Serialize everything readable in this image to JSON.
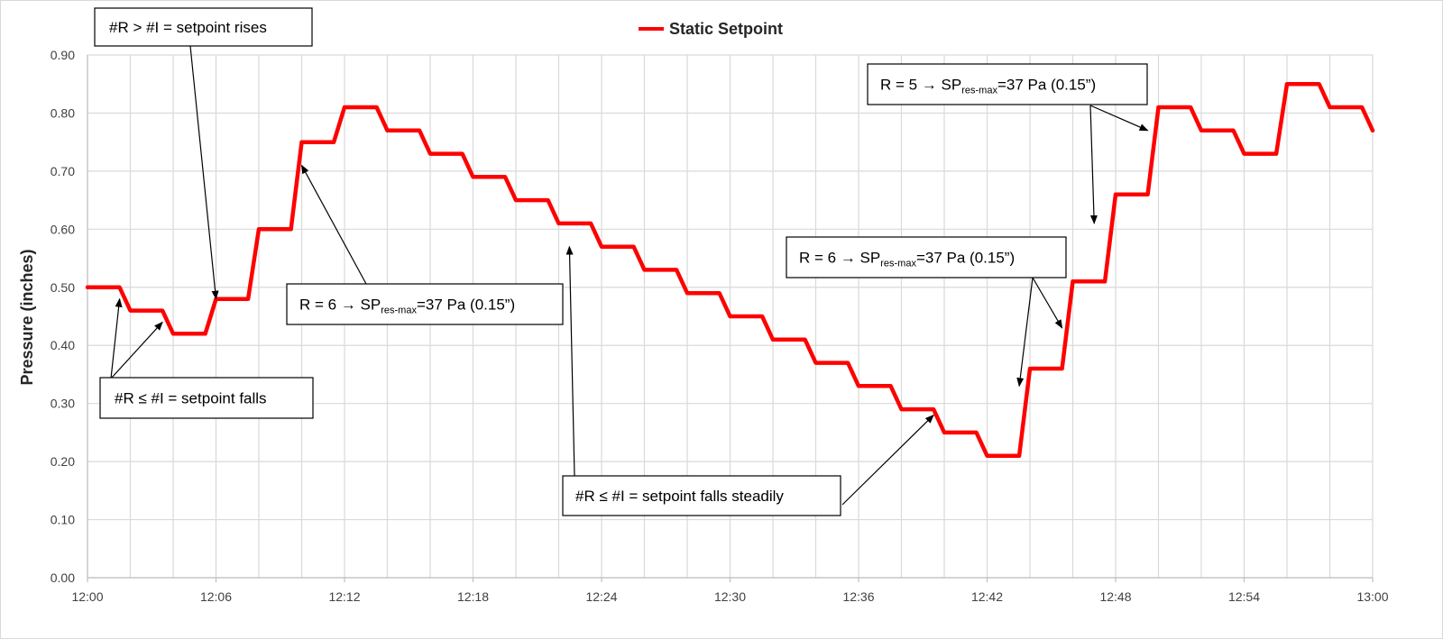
{
  "chart_data": {
    "type": "line",
    "title": "",
    "xlabel": "",
    "ylabel": "Pressure (inches)",
    "ylim": [
      0,
      0.9
    ],
    "y_ticks": [
      "0.00",
      "0.10",
      "0.20",
      "0.30",
      "0.40",
      "0.50",
      "0.60",
      "0.70",
      "0.80",
      "0.90"
    ],
    "x_range_minutes": [
      0,
      60
    ],
    "x_ticks": [
      "12:00",
      "12:06",
      "12:12",
      "12:18",
      "12:24",
      "12:30",
      "12:36",
      "12:42",
      "12:48",
      "12:54",
      "13:00"
    ],
    "grid": true,
    "legend": {
      "placement": "top-center",
      "entries": [
        "Static Setpoint"
      ]
    },
    "series": [
      {
        "name": "Static Setpoint",
        "color": "#ff0000",
        "points": [
          [
            "12:00",
            0.5
          ],
          [
            "12:01.5",
            0.5
          ],
          [
            "12:02",
            0.46
          ],
          [
            "12:03.5",
            0.46
          ],
          [
            "12:04",
            0.42
          ],
          [
            "12:05.5",
            0.42
          ],
          [
            "12:06",
            0.48
          ],
          [
            "12:07.5",
            0.48
          ],
          [
            "12:08",
            0.6
          ],
          [
            "12:09.5",
            0.6
          ],
          [
            "12:10",
            0.75
          ],
          [
            "12:11.5",
            0.75
          ],
          [
            "12:12",
            0.81
          ],
          [
            "12:13.5",
            0.81
          ],
          [
            "12:14",
            0.77
          ],
          [
            "12:15.5",
            0.77
          ],
          [
            "12:16",
            0.73
          ],
          [
            "12:17.5",
            0.73
          ],
          [
            "12:18",
            0.69
          ],
          [
            "12:19.5",
            0.69
          ],
          [
            "12:20",
            0.65
          ],
          [
            "12:21.5",
            0.65
          ],
          [
            "12:22",
            0.61
          ],
          [
            "12:23.5",
            0.61
          ],
          [
            "12:24",
            0.57
          ],
          [
            "12:25.5",
            0.57
          ],
          [
            "12:26",
            0.53
          ],
          [
            "12:27.5",
            0.53
          ],
          [
            "12:28",
            0.49
          ],
          [
            "12:29.5",
            0.49
          ],
          [
            "12:30",
            0.45
          ],
          [
            "12:31.5",
            0.45
          ],
          [
            "12:32",
            0.41
          ],
          [
            "12:33.5",
            0.41
          ],
          [
            "12:34",
            0.37
          ],
          [
            "12:35.5",
            0.37
          ],
          [
            "12:36",
            0.33
          ],
          [
            "12:37.5",
            0.33
          ],
          [
            "12:38",
            0.29
          ],
          [
            "12:39.5",
            0.29
          ],
          [
            "12:40",
            0.25
          ],
          [
            "12:41.5",
            0.25
          ],
          [
            "12:42",
            0.21
          ],
          [
            "12:43.5",
            0.21
          ],
          [
            "12:44",
            0.36
          ],
          [
            "12:45.5",
            0.36
          ],
          [
            "12:46",
            0.51
          ],
          [
            "12:47.5",
            0.51
          ],
          [
            "12:48",
            0.66
          ],
          [
            "12:49.5",
            0.66
          ],
          [
            "12:50",
            0.81
          ],
          [
            "12:51.5",
            0.81
          ],
          [
            "12:52",
            0.77
          ],
          [
            "12:53.5",
            0.77
          ],
          [
            "12:54",
            0.73
          ],
          [
            "12:55.5",
            0.73
          ],
          [
            "12:56",
            0.85
          ],
          [
            "12:57.5",
            0.85
          ],
          [
            "12:58",
            0.81
          ],
          [
            "12:59.5",
            0.81
          ],
          [
            "13:00",
            0.77
          ]
        ]
      }
    ],
    "annotations": [
      {
        "id": "rises",
        "parts": [
          {
            "t": "#R > #I = setpoint rises"
          }
        ],
        "arrows_to": [
          [
            "12:06",
            0.48
          ]
        ]
      },
      {
        "id": "falls",
        "parts": [
          {
            "t": "#R ≤ #I = setpoint falls"
          }
        ],
        "arrows_to": [
          [
            "12:01.5",
            0.48
          ],
          [
            "12:03.5",
            0.44
          ]
        ]
      },
      {
        "id": "r6-left",
        "parts": [
          {
            "t": "R = 6 → SP"
          },
          {
            "t": "res-max",
            "sub": true
          },
          {
            "t": "=37 Pa (0.15”)"
          }
        ],
        "arrows_to": [
          [
            "12:10",
            0.71
          ]
        ]
      },
      {
        "id": "falls-steadily",
        "parts": [
          {
            "t": "#R ≤ #I = setpoint falls steadily"
          }
        ],
        "arrows_to": [
          [
            "12:22.5",
            0.57
          ],
          [
            "12:39.5",
            0.28
          ]
        ]
      },
      {
        "id": "r6-right",
        "parts": [
          {
            "t": "R = 6 → SP"
          },
          {
            "t": "res-max",
            "sub": true
          },
          {
            "t": "=37 Pa (0.15”)"
          }
        ],
        "arrows_to": [
          [
            "12:43.5",
            0.33
          ],
          [
            "12:45.5",
            0.43
          ]
        ]
      },
      {
        "id": "r5",
        "parts": [
          {
            "t": "R = 5 → SP"
          },
          {
            "t": "res-max",
            "sub": true
          },
          {
            "t": "=37 Pa (0.15”)"
          }
        ],
        "arrows_to": [
          [
            "12:47",
            0.61
          ],
          [
            "12:49.5",
            0.77
          ]
        ]
      }
    ]
  }
}
